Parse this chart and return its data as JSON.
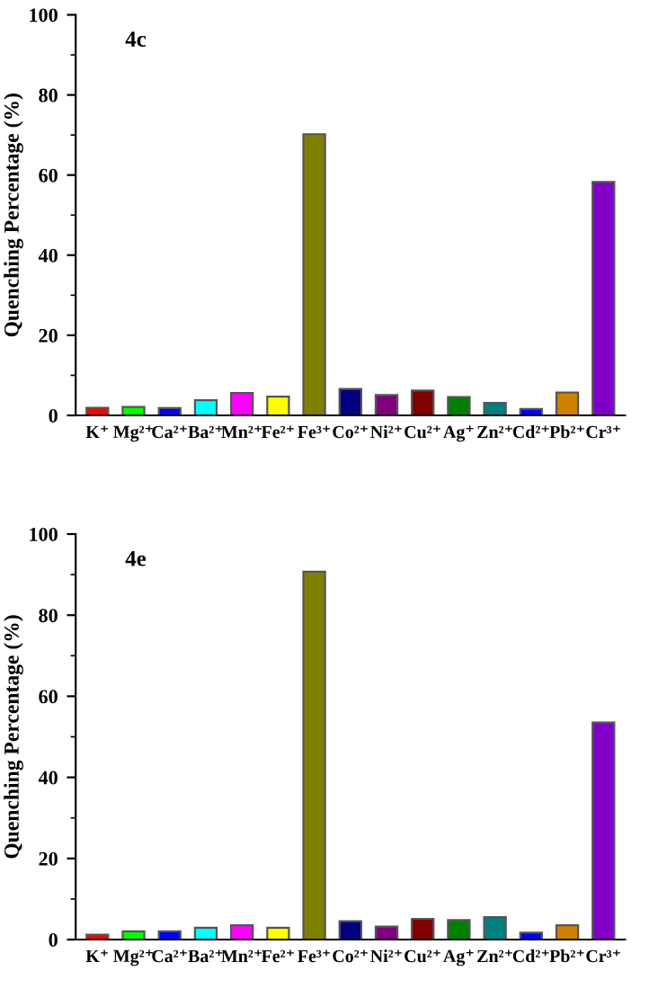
{
  "chart_data": [
    {
      "type": "bar",
      "ylabel": "Quenching Percentage (%)",
      "annotations": [
        "4c"
      ],
      "categories": [
        "K⁺",
        "Mg²⁺",
        "Ca²⁺",
        "Ba²⁺",
        "Mn²⁺",
        "Fe²⁺",
        "Fe³⁺",
        "Co²⁺",
        "Ni²⁺",
        "Cu²⁺",
        "Ag⁺",
        "Zn²⁺",
        "Cd²⁺",
        "Pb²⁺",
        "Cr³⁺"
      ],
      "values": [
        1.9,
        2.1,
        1.8,
        3.8,
        5.6,
        4.7,
        70.2,
        6.6,
        5.1,
        6.2,
        4.6,
        3.1,
        1.6,
        5.7,
        58.3
      ],
      "colors": [
        "#ff0000",
        "#00ff00",
        "#0000ff",
        "#00ffff",
        "#ff00ff",
        "#ffff00",
        "#808000",
        "#000080",
        "#800080",
        "#800000",
        "#008000",
        "#008080",
        "#0000ff",
        "#d08000",
        "#8000c8"
      ],
      "ylim": [
        0,
        100
      ],
      "yticks": [
        0,
        20,
        40,
        60,
        80,
        100
      ],
      "grid": false,
      "legend": false
    },
    {
      "type": "bar",
      "ylabel": "Quenching Percentage (%)",
      "annotations": [
        "4e"
      ],
      "categories": [
        "K⁺",
        "Mg²⁺",
        "Ca²⁺",
        "Ba²⁺",
        "Mn²⁺",
        "Fe²⁺",
        "Fe³⁺",
        "Co²⁺",
        "Ni²⁺",
        "Cu²⁺",
        "Ag⁺",
        "Zn²⁺",
        "Cd²⁺",
        "Pb²⁺",
        "Cr³⁺"
      ],
      "values": [
        1.2,
        2.0,
        2.0,
        2.9,
        3.5,
        2.9,
        90.7,
        4.5,
        3.2,
        5.1,
        4.8,
        5.5,
        1.7,
        3.5,
        53.5
      ],
      "colors": [
        "#ff0000",
        "#00ff00",
        "#0000ff",
        "#00ffff",
        "#ff00ff",
        "#ffff00",
        "#808000",
        "#000080",
        "#800080",
        "#800000",
        "#008000",
        "#008080",
        "#0000ff",
        "#d08000",
        "#8000c8"
      ],
      "ylim": [
        0,
        100
      ],
      "yticks": [
        0,
        20,
        40,
        60,
        80,
        100
      ],
      "grid": false,
      "legend": false
    }
  ]
}
